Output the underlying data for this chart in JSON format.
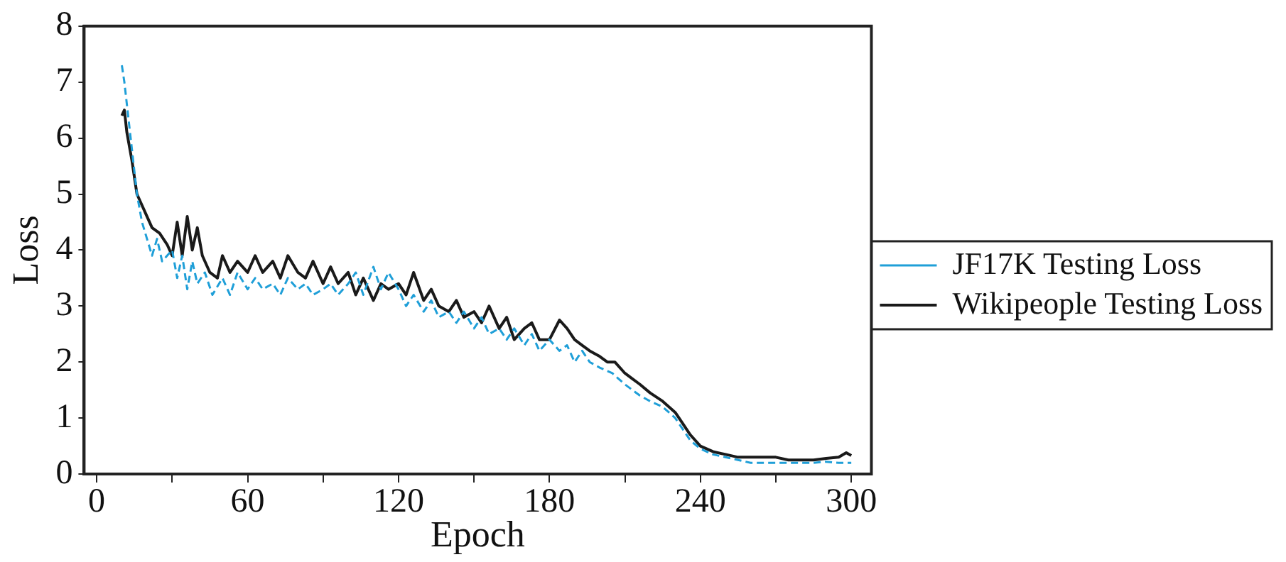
{
  "chart_data": {
    "type": "line",
    "xlabel": "Epoch",
    "ylabel": "Loss",
    "xlim": [
      -5,
      308
    ],
    "xticks": [
      0,
      {
        "value": 30,
        "label": null
      },
      60,
      {
        "value": 90,
        "label": null
      },
      120,
      {
        "value": 150,
        "label": null
      },
      180,
      {
        "value": 210,
        "label": null
      },
      240,
      {
        "value": 270,
        "label": null
      },
      300
    ],
    "ylim": [
      0,
      8
    ],
    "yticks": [
      0,
      1,
      2,
      3,
      4,
      5,
      6,
      7,
      8
    ],
    "grid": false,
    "legend": "right",
    "marker": "none",
    "series": [
      {
        "name": "JF17K Testing Loss",
        "color": "#1f9fd8",
        "line_style": "dashed",
        "x": [
          10,
          11,
          12,
          14,
          16,
          18,
          20,
          22,
          24,
          26,
          28,
          30,
          32,
          34,
          36,
          38,
          40,
          43,
          46,
          50,
          53,
          56,
          60,
          63,
          66,
          70,
          73,
          76,
          80,
          83,
          86,
          90,
          93,
          96,
          100,
          103,
          106,
          110,
          113,
          116,
          120,
          123,
          126,
          130,
          133,
          136,
          140,
          143,
          146,
          150,
          153,
          156,
          160,
          163,
          166,
          170,
          173,
          176,
          180,
          184,
          187,
          190,
          193,
          196,
          200,
          205,
          210,
          213,
          216,
          220,
          225,
          230,
          233,
          236,
          240,
          245,
          250,
          255,
          260,
          265,
          270,
          275,
          280,
          285,
          290,
          295,
          300
        ],
        "values": [
          7.3,
          7.0,
          6.6,
          5.8,
          5.0,
          4.5,
          4.2,
          3.9,
          4.2,
          3.8,
          3.9,
          4.0,
          3.5,
          3.9,
          3.3,
          3.8,
          3.4,
          3.6,
          3.2,
          3.5,
          3.2,
          3.6,
          3.3,
          3.5,
          3.3,
          3.4,
          3.2,
          3.5,
          3.3,
          3.4,
          3.2,
          3.3,
          3.4,
          3.2,
          3.4,
          3.6,
          3.2,
          3.7,
          3.3,
          3.6,
          3.3,
          3.0,
          3.2,
          2.9,
          3.1,
          2.8,
          2.9,
          2.7,
          2.9,
          2.6,
          2.8,
          2.5,
          2.6,
          2.4,
          2.6,
          2.3,
          2.5,
          2.2,
          2.4,
          2.2,
          2.3,
          2.0,
          2.2,
          2.0,
          1.9,
          1.8,
          1.6,
          1.5,
          1.4,
          1.3,
          1.2,
          1.0,
          0.8,
          0.6,
          0.45,
          0.35,
          0.3,
          0.25,
          0.2,
          0.2,
          0.2,
          0.2,
          0.2,
          0.2,
          0.22,
          0.2,
          0.2
        ]
      },
      {
        "name": "Wikipeople Testing Loss",
        "color": "#1a1a1a",
        "line_style": "solid",
        "x": [
          10,
          11,
          12,
          14,
          16,
          18,
          20,
          22,
          25,
          28,
          30,
          32,
          34,
          36,
          38,
          40,
          42,
          45,
          48,
          50,
          53,
          56,
          60,
          63,
          66,
          70,
          73,
          76,
          80,
          83,
          86,
          90,
          93,
          96,
          100,
          103,
          106,
          110,
          113,
          116,
          120,
          123,
          126,
          130,
          133,
          136,
          140,
          143,
          146,
          150,
          153,
          156,
          160,
          163,
          166,
          170,
          173,
          176,
          180,
          184,
          187,
          190,
          193,
          196,
          200,
          203,
          206,
          210,
          213,
          216,
          220,
          225,
          230,
          233,
          236,
          240,
          245,
          250,
          255,
          260,
          265,
          270,
          275,
          280,
          285,
          290,
          295,
          298,
          300
        ],
        "values": [
          6.4,
          6.5,
          6.1,
          5.6,
          5.0,
          4.8,
          4.6,
          4.4,
          4.3,
          4.1,
          3.9,
          4.5,
          3.9,
          4.6,
          4.0,
          4.4,
          3.9,
          3.6,
          3.5,
          3.9,
          3.6,
          3.8,
          3.6,
          3.9,
          3.6,
          3.8,
          3.5,
          3.9,
          3.6,
          3.5,
          3.8,
          3.4,
          3.7,
          3.4,
          3.6,
          3.2,
          3.5,
          3.1,
          3.4,
          3.3,
          3.4,
          3.2,
          3.6,
          3.1,
          3.3,
          3.0,
          2.9,
          3.1,
          2.8,
          2.9,
          2.7,
          3.0,
          2.6,
          2.8,
          2.4,
          2.6,
          2.7,
          2.4,
          2.4,
          2.75,
          2.6,
          2.4,
          2.3,
          2.2,
          2.1,
          2.0,
          2.0,
          1.8,
          1.7,
          1.6,
          1.45,
          1.3,
          1.1,
          0.9,
          0.7,
          0.5,
          0.4,
          0.35,
          0.3,
          0.3,
          0.3,
          0.3,
          0.25,
          0.25,
          0.25,
          0.28,
          0.3,
          0.38,
          0.33
        ]
      }
    ]
  }
}
